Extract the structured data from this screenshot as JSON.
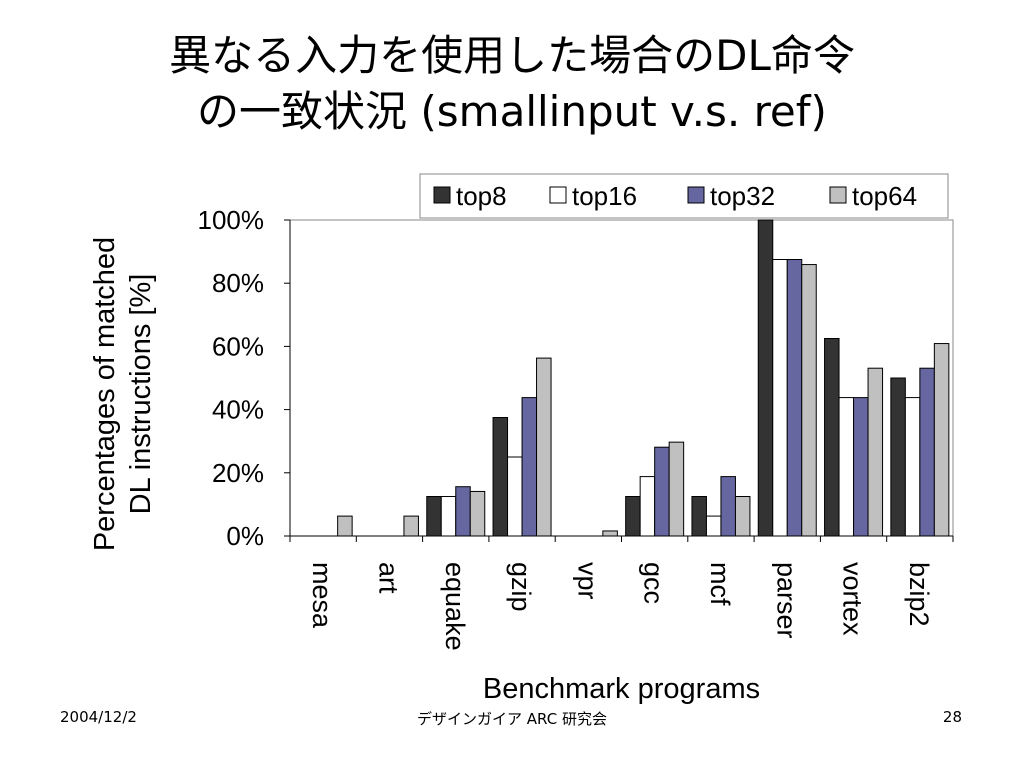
{
  "slide": {
    "title_line1": "異なる入力を使用した場合のDL命令",
    "title_line2": "の一致状況 (smallinput v.s. ref)",
    "footer_date": "2004/12/2",
    "footer_org": "デザインガイア ARC 研究会",
    "footer_page": "28"
  },
  "chart_data": {
    "type": "bar",
    "title": "",
    "xlabel": "Benchmark programs",
    "ylabel_lines": [
      "Percentages of matched",
      "DL instructions [%]"
    ],
    "ylim": [
      0,
      100
    ],
    "yticks": [
      "0%",
      "20%",
      "40%",
      "60%",
      "80%",
      "100%"
    ],
    "grid": false,
    "legend_position": "top-right",
    "categories": [
      "mesa",
      "art",
      "equake",
      "gzip",
      "vpr",
      "gcc",
      "mcf",
      "parser",
      "vortex",
      "bzip2"
    ],
    "series": [
      {
        "name": "top8",
        "color": "#333333",
        "values": [
          0,
          0,
          12.5,
          37.5,
          0,
          12.5,
          12.5,
          100,
          62.5,
          50
        ]
      },
      {
        "name": "top16",
        "color": "#ffffff",
        "values": [
          0,
          0,
          12.5,
          25,
          0,
          18.8,
          6.3,
          87.5,
          43.8,
          43.8
        ]
      },
      {
        "name": "top32",
        "color": "#6666a0",
        "values": [
          0,
          0,
          15.6,
          43.8,
          0,
          28.1,
          18.8,
          87.5,
          43.8,
          53.1
        ]
      },
      {
        "name": "top64",
        "color": "#c0c0c0",
        "values": [
          6.3,
          6.3,
          14.1,
          56.3,
          1.6,
          29.7,
          12.5,
          85.9,
          53.1,
          60.9
        ]
      }
    ]
  }
}
